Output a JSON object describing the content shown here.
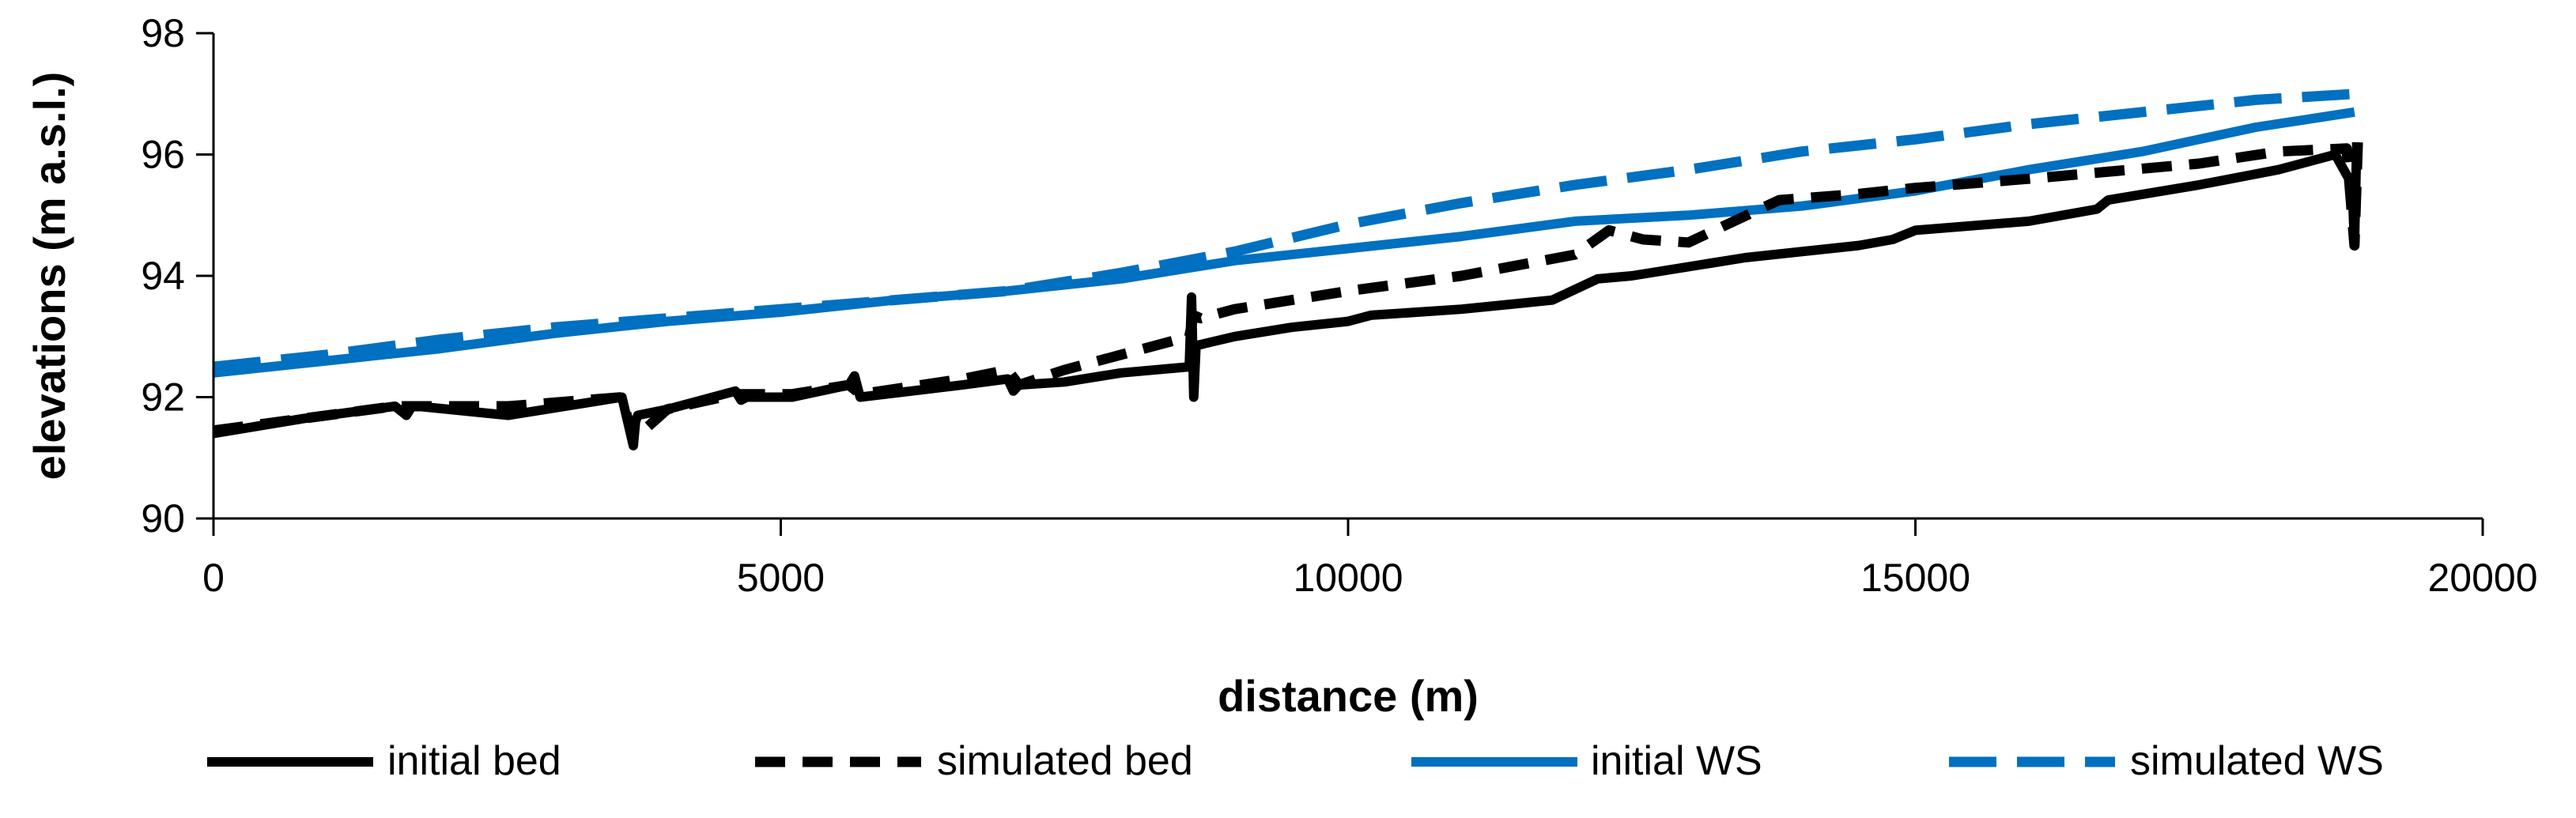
{
  "chart_data": {
    "type": "line",
    "xlabel": "distance (m)",
    "ylabel": "elevations (m a.s.l.)",
    "xlim": [
      0,
      20000
    ],
    "ylim": [
      90,
      98
    ],
    "xticks": [
      0,
      5000,
      10000,
      15000,
      20000
    ],
    "yticks": [
      90,
      92,
      94,
      96,
      98
    ],
    "xtick_labels": [
      "0",
      "5000",
      "10000",
      "15000",
      "20000"
    ],
    "ytick_labels": [
      "90",
      "92",
      "94",
      "96",
      "98"
    ],
    "grid": false,
    "legend_position": "bottom",
    "series": [
      {
        "name": "initial bed",
        "color": "#000000",
        "style": "solid",
        "x": [
          0,
          800,
          1600,
          1700,
          1750,
          1800,
          2600,
          3600,
          3700,
          3720,
          3740,
          4000,
          4600,
          4650,
          4700,
          5100,
          5600,
          5650,
          5700,
          6600,
          7000,
          7050,
          7100,
          7500,
          8000,
          8600,
          8620,
          8640,
          8660,
          9000,
          9500,
          10000,
          10200,
          11000,
          11800,
          12200,
          12500,
          13000,
          13500,
          14500,
          14800,
          15000,
          16000,
          16600,
          16700,
          17500,
          18200,
          18700,
          18850,
          18870,
          18890
        ],
        "y": [
          91.4,
          91.65,
          91.85,
          91.7,
          91.85,
          91.85,
          91.7,
          92.0,
          91.2,
          91.6,
          91.7,
          91.8,
          92.1,
          91.95,
          92.0,
          92.0,
          92.2,
          92.35,
          92.0,
          92.2,
          92.3,
          92.1,
          92.2,
          92.25,
          92.4,
          92.5,
          93.65,
          92.0,
          92.85,
          93.0,
          93.15,
          93.25,
          93.35,
          93.45,
          93.6,
          93.95,
          94.0,
          94.15,
          94.3,
          94.5,
          94.6,
          94.75,
          94.9,
          95.1,
          95.25,
          95.5,
          95.75,
          96.0,
          95.5,
          94.5,
          96.2
        ]
      },
      {
        "name": "simulated bed",
        "color": "#000000",
        "style": "dashed",
        "x": [
          0,
          800,
          1600,
          2600,
          3600,
          3700,
          4000,
          4600,
          5100,
          5600,
          5700,
          6600,
          7000,
          7100,
          7500,
          8000,
          8600,
          8640,
          8700,
          9000,
          10000,
          11000,
          12000,
          12300,
          12600,
          13000,
          13800,
          14500,
          15000,
          16000,
          16600,
          17500,
          18200,
          18800,
          18870,
          18900
        ],
        "y": [
          91.45,
          91.65,
          91.85,
          91.85,
          92.0,
          91.3,
          91.8,
          92.05,
          92.05,
          92.2,
          92.05,
          92.3,
          92.45,
          92.2,
          92.45,
          92.7,
          93.0,
          93.35,
          93.3,
          93.45,
          93.75,
          94.0,
          94.35,
          94.75,
          94.6,
          94.55,
          95.25,
          95.35,
          95.45,
          95.6,
          95.7,
          95.85,
          96.05,
          96.1,
          94.5,
          96.2
        ]
      },
      {
        "name": "initial WS",
        "color": "#0070C0",
        "style": "solid",
        "x": [
          0,
          1000,
          2000,
          3000,
          4000,
          5000,
          6000,
          7000,
          8000,
          9000,
          10000,
          11000,
          12000,
          13000,
          14000,
          15000,
          16000,
          17000,
          18000,
          18870
        ],
        "y": [
          92.4,
          92.6,
          92.8,
          93.05,
          93.25,
          93.4,
          93.6,
          93.75,
          93.95,
          94.25,
          94.45,
          94.65,
          94.9,
          95.0,
          95.15,
          95.4,
          95.75,
          96.05,
          96.45,
          96.7
        ]
      },
      {
        "name": "simulated WS",
        "color": "#0070C0",
        "style": "dashed",
        "x": [
          0,
          1000,
          2000,
          3000,
          4000,
          5000,
          6000,
          7000,
          8000,
          9000,
          10000,
          11000,
          12000,
          13000,
          14000,
          15000,
          16000,
          17000,
          18000,
          18870
        ],
        "y": [
          92.5,
          92.7,
          92.95,
          93.15,
          93.3,
          93.45,
          93.6,
          93.75,
          94.05,
          94.4,
          94.85,
          95.2,
          95.5,
          95.75,
          96.05,
          96.25,
          96.5,
          96.7,
          96.9,
          97.0
        ]
      }
    ]
  }
}
